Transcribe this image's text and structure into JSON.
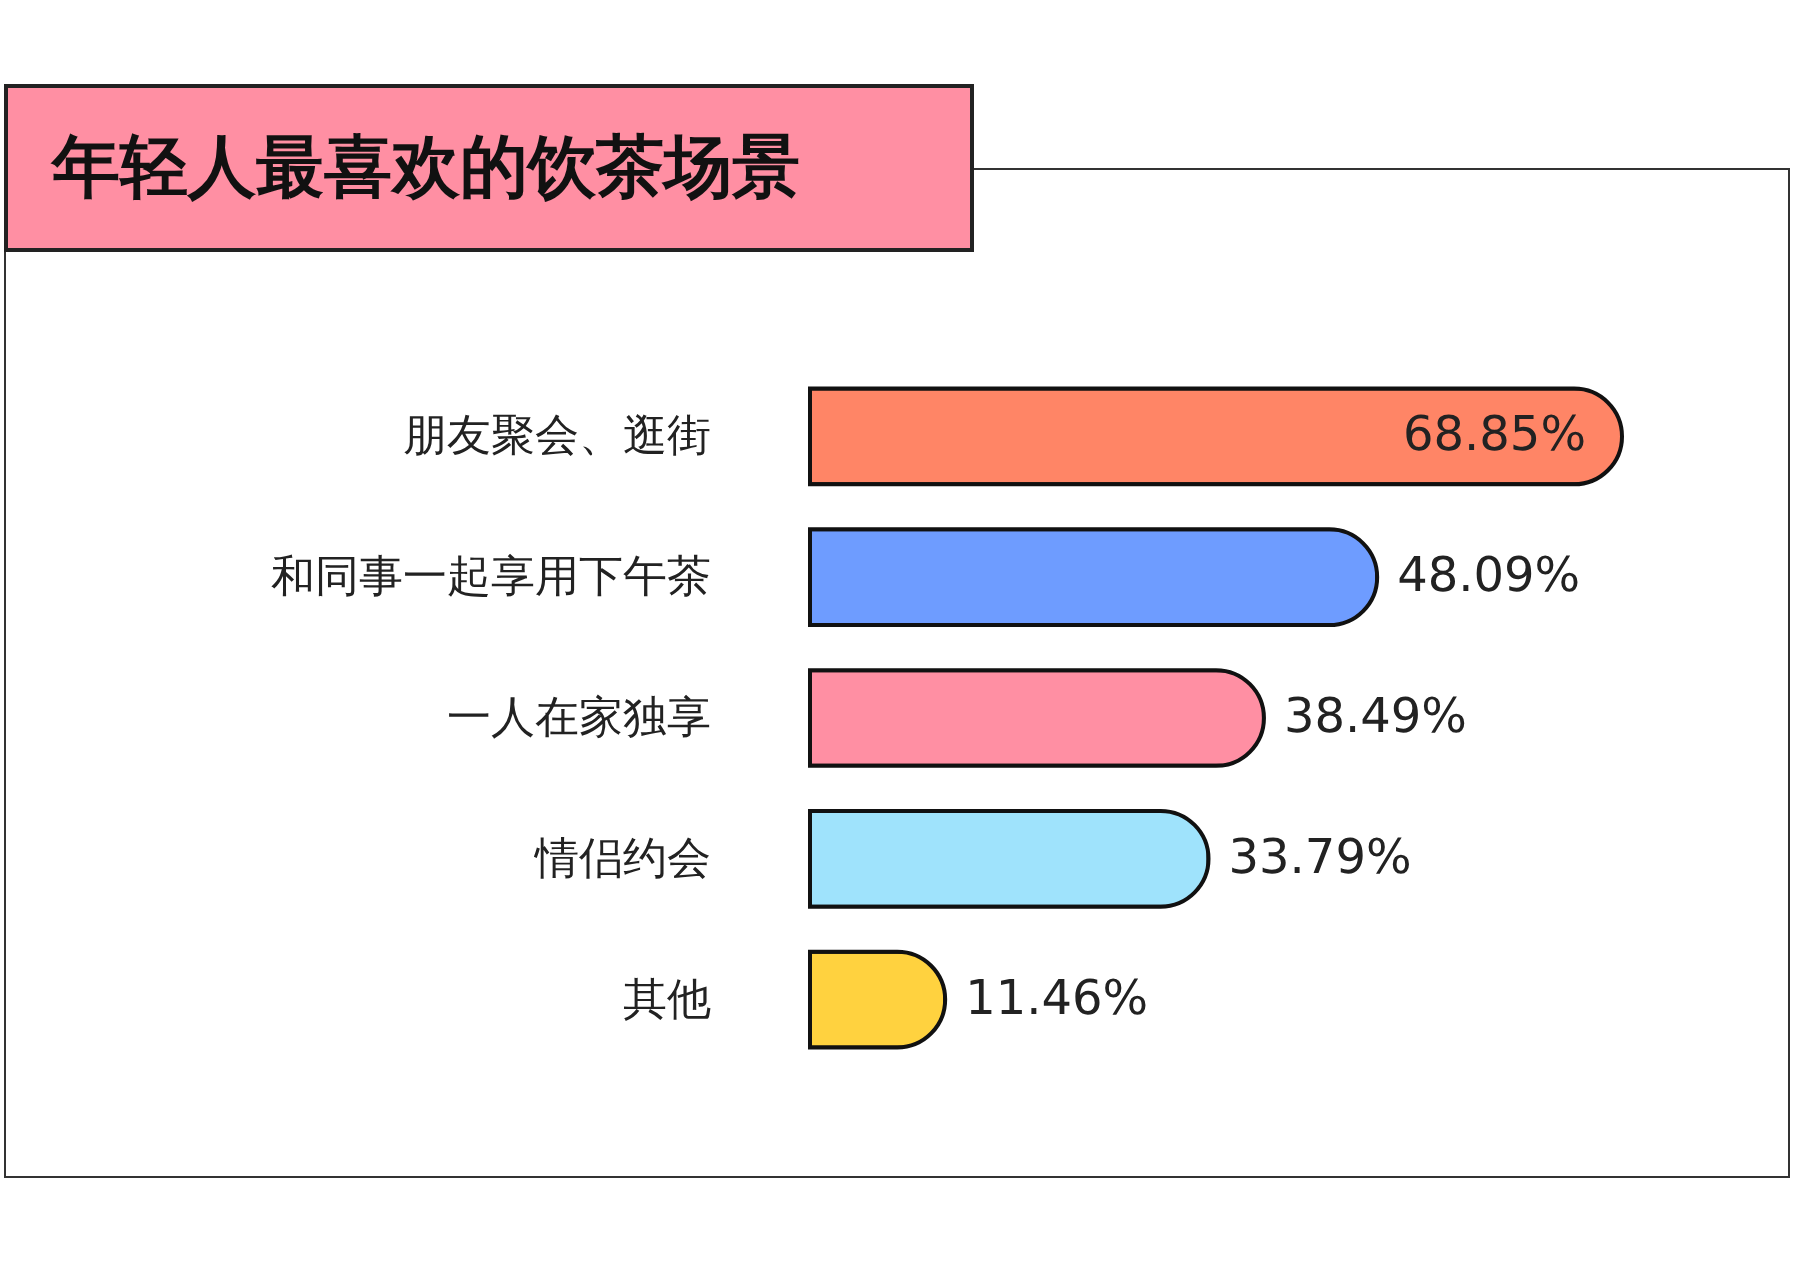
{
  "chart_data": {
    "type": "bar",
    "orientation": "horizontal",
    "title": "年轻人最喜欢的饮茶场景",
    "categories": [
      "朋友聚会、逛街",
      "和同事一起享用下午茶",
      "一人在家独享",
      "情侣约会",
      "其他"
    ],
    "values": [
      68.85,
      48.09,
      38.49,
      33.79,
      11.46
    ],
    "colors": [
      "#ff8566",
      "#6e9cff",
      "#ff8fa3",
      "#9fe3fc",
      "#ffd23f"
    ],
    "value_labels": [
      "68.85%",
      "48.09%",
      "38.49%",
      "33.79%",
      "11.46%"
    ]
  }
}
